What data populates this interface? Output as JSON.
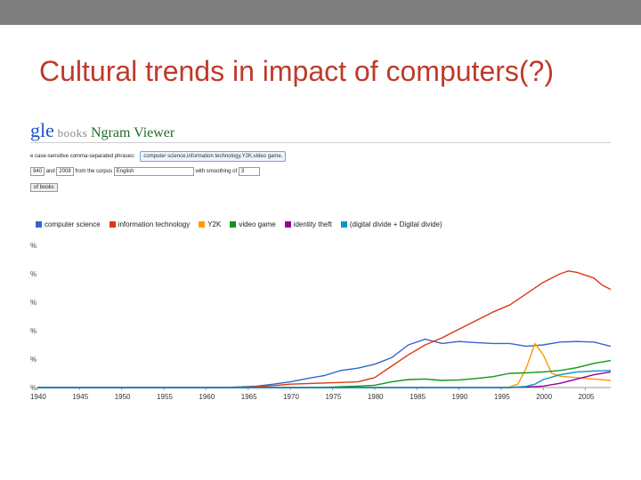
{
  "slide": {
    "title": "Cultural trends in impact of computers(?)"
  },
  "ngram_ui": {
    "logo_gle": "gle",
    "logo_books": " books ",
    "logo_ngram": "Ngram Viewer",
    "case_label": "e case-sensitive",
    "phrases_label": "comma-separated phrases:",
    "phrases_value": "computer science,information technology,Y2K,video game,",
    "year_from": "940",
    "and_label": "and",
    "year_to": "2008",
    "corpus_label": "from the corpus",
    "corpus_value": "English",
    "smoothing_label": "with smoothing of",
    "smoothing_value": "3",
    "search_button": "of books"
  },
  "colors": {
    "computer_science": "#3366cc",
    "information_technology": "#dc3912",
    "y2k": "#ff9900",
    "video_game": "#109618",
    "identity_theft": "#990099",
    "digital_divide": "#0099c6"
  },
  "chart_data": {
    "type": "line",
    "title": "",
    "xlabel": "",
    "ylabel": "",
    "xlim": [
      1940,
      2008
    ],
    "ylim": [
      0,
      5
    ],
    "x_ticks": [
      1940,
      1945,
      1950,
      1955,
      1960,
      1965,
      1970,
      1975,
      1980,
      1985,
      1990,
      1995,
      2000,
      2005
    ],
    "y_tick_labels": [
      "%",
      "%",
      "%",
      "%",
      "%",
      "%"
    ],
    "grid": false,
    "legend": "top",
    "series": [
      {
        "name": "computer science",
        "color": "#3366cc",
        "x": [
          1940,
          1960,
          1963,
          1966,
          1968,
          1970,
          1972,
          1974,
          1976,
          1978,
          1980,
          1982,
          1984,
          1986,
          1988,
          1990,
          1992,
          1994,
          1996,
          1998,
          2000,
          2002,
          2004,
          2006,
          2008
        ],
        "y": [
          0,
          0,
          0.01,
          0.05,
          0.12,
          0.2,
          0.32,
          0.42,
          0.6,
          0.68,
          0.82,
          1.05,
          1.5,
          1.7,
          1.55,
          1.62,
          1.58,
          1.55,
          1.55,
          1.45,
          1.5,
          1.6,
          1.62,
          1.6,
          1.45
        ]
      },
      {
        "name": "information technology",
        "color": "#dc3912",
        "x": [
          1940,
          1960,
          1965,
          1968,
          1970,
          1975,
          1978,
          1980,
          1982,
          1984,
          1986,
          1988,
          1990,
          1992,
          1994,
          1996,
          1998,
          2000,
          2002,
          2003,
          2004,
          2006,
          2007,
          2008
        ],
        "y": [
          0,
          0,
          0.02,
          0.07,
          0.12,
          0.17,
          0.2,
          0.35,
          0.75,
          1.15,
          1.5,
          1.75,
          2.05,
          2.35,
          2.65,
          2.9,
          3.3,
          3.7,
          4.0,
          4.1,
          4.05,
          3.85,
          3.6,
          3.45
        ]
      },
      {
        "name": "Y2K",
        "color": "#ff9900",
        "x": [
          1940,
          1995,
          1996,
          1997,
          1998,
          1999,
          2000,
          2001,
          2002,
          2004,
          2006,
          2008
        ],
        "y": [
          0,
          0,
          0.02,
          0.12,
          0.7,
          1.55,
          1.15,
          0.5,
          0.4,
          0.35,
          0.3,
          0.25
        ]
      },
      {
        "name": "video game",
        "color": "#109618",
        "x": [
          1940,
          1972,
          1975,
          1978,
          1980,
          1982,
          1984,
          1986,
          1988,
          1990,
          1992,
          1994,
          1996,
          1998,
          2000,
          2002,
          2004,
          2006,
          2008
        ],
        "y": [
          0,
          0,
          0.02,
          0.05,
          0.08,
          0.2,
          0.28,
          0.3,
          0.25,
          0.27,
          0.32,
          0.38,
          0.5,
          0.52,
          0.55,
          0.6,
          0.7,
          0.85,
          0.95
        ]
      },
      {
        "name": "identity theft",
        "color": "#990099",
        "x": [
          1940,
          1996,
          1998,
          2000,
          2002,
          2004,
          2006,
          2008
        ],
        "y": [
          0,
          0,
          0.02,
          0.05,
          0.15,
          0.3,
          0.45,
          0.55
        ]
      },
      {
        "name": "(digital divide + Digital divide)",
        "color": "#0099c6",
        "x": [
          1940,
          1996,
          1998,
          1999,
          2000,
          2002,
          2004,
          2006,
          2008
        ],
        "y": [
          0,
          0,
          0.04,
          0.12,
          0.28,
          0.45,
          0.55,
          0.58,
          0.6
        ]
      }
    ]
  }
}
